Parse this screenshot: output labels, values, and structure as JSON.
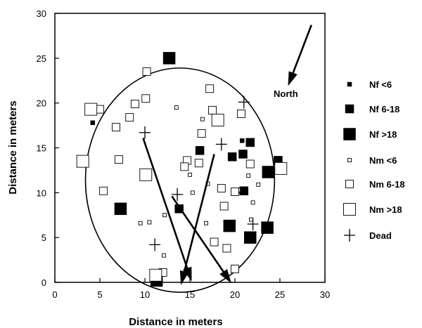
{
  "chart_data": {
    "type": "scatter",
    "title": "",
    "xlabel": "Distance in meters",
    "ylabel": "Distance in meters",
    "xlim": [
      0,
      30
    ],
    "ylim": [
      0,
      30
    ],
    "xticks": [
      "0",
      "5",
      "10",
      "15",
      "20",
      "25",
      "30"
    ],
    "yticks": [
      "0",
      "5",
      "10",
      "15",
      "20",
      "25",
      "30"
    ],
    "grid": false,
    "legend_position": "right",
    "annotation": "North",
    "series": [
      {
        "name": "Nf <6",
        "marker": "filled-square-small",
        "points": [
          [
            4.2,
            17.8
          ],
          [
            20.8,
            15.8
          ],
          [
            20.5,
            10.2
          ]
        ]
      },
      {
        "name": "Nf 6-18",
        "marker": "filled-square-medium",
        "points": [
          [
            21.7,
            15.6
          ],
          [
            16.1,
            14.7
          ],
          [
            20.9,
            14.3
          ],
          [
            19.7,
            14.0
          ],
          [
            24.8,
            13.6
          ],
          [
            21.0,
            10.2
          ],
          [
            13.8,
            8.2
          ]
        ]
      },
      {
        "name": "Nf >18",
        "marker": "filled-square-large",
        "points": [
          [
            12.7,
            25.0
          ],
          [
            23.7,
            12.3
          ],
          [
            7.3,
            8.2
          ],
          [
            19.4,
            6.3
          ],
          [
            23.6,
            6.1
          ],
          [
            21.7,
            5.0
          ],
          [
            11.3,
            0.2
          ]
        ]
      },
      {
        "name": "Nm <6",
        "marker": "open-square-small",
        "points": [
          [
            13.5,
            19.5
          ],
          [
            16.4,
            18.2
          ],
          [
            2.9,
            13.1
          ],
          [
            15.0,
            12.0
          ],
          [
            15.3,
            10.0
          ],
          [
            17.0,
            11.0
          ],
          [
            21.5,
            11.9
          ],
          [
            22.6,
            10.9
          ],
          [
            22.0,
            8.9
          ],
          [
            16.8,
            6.6
          ],
          [
            10.5,
            6.7
          ],
          [
            9.5,
            6.6
          ],
          [
            12.2,
            7.5
          ],
          [
            12.1,
            3.0
          ],
          [
            21.8,
            7.0
          ],
          [
            20.4,
            10.3
          ]
        ]
      },
      {
        "name": "Nm 6-18",
        "marker": "open-square-medium",
        "points": [
          [
            10.2,
            23.5
          ],
          [
            17.2,
            21.6
          ],
          [
            5.0,
            19.3
          ],
          [
            6.8,
            17.3
          ],
          [
            8.3,
            18.4
          ],
          [
            8.9,
            19.9
          ],
          [
            10.1,
            20.5
          ],
          [
            17.5,
            19.2
          ],
          [
            16.3,
            16.6
          ],
          [
            20.7,
            18.8
          ],
          [
            5.4,
            10.2
          ],
          [
            7.1,
            13.7
          ],
          [
            14.7,
            13.6
          ],
          [
            16.0,
            13.3
          ],
          [
            18.5,
            10.5
          ],
          [
            20.0,
            10.1
          ],
          [
            18.8,
            8.5
          ],
          [
            17.7,
            4.5
          ],
          [
            19.1,
            3.8
          ],
          [
            20.0,
            1.5
          ],
          [
            12.0,
            1.1
          ],
          [
            21.7,
            13.2
          ],
          [
            14.4,
            12.9
          ]
        ]
      },
      {
        "name": "Nm >18",
        "marker": "open-square-large",
        "points": [
          [
            4.0,
            19.3
          ],
          [
            18.1,
            18.1
          ],
          [
            3.1,
            13.5
          ],
          [
            10.1,
            12.0
          ],
          [
            25.1,
            12.7
          ],
          [
            11.2,
            0.8
          ]
        ]
      },
      {
        "name": "Dead",
        "marker": "plus",
        "points": [
          [
            10.0,
            16.7
          ],
          [
            21.0,
            20.1
          ],
          [
            18.5,
            15.4
          ],
          [
            13.6,
            9.8
          ],
          [
            22.0,
            6.5
          ],
          [
            11.1,
            4.2
          ]
        ]
      }
    ],
    "arrows": [
      {
        "from": [
          28.5,
          28.7
        ],
        "to": [
          25.9,
          21.9
        ]
      },
      {
        "from": [
          9.8,
          16.1
        ],
        "to": [
          15.2,
          0.1
        ]
      },
      {
        "from": [
          17.7,
          14.3
        ],
        "to": [
          14.0,
          -0.3
        ]
      },
      {
        "from": [
          13.0,
          9.6
        ],
        "to": [
          19.6,
          -0.1
        ]
      }
    ],
    "ellipse": {
      "cx": 13.9,
      "cy": 11.4,
      "rx": 10.5,
      "ry": 12.5
    }
  }
}
